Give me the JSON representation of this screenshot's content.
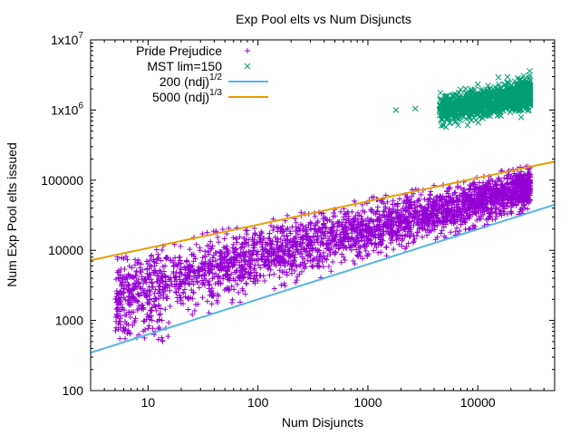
{
  "chart_data": {
    "type": "scatter",
    "title": "Exp Pool elts vs Num Disjuncts",
    "xlabel": "Num Disjuncts",
    "ylabel": "Num Exp Pool elts issued",
    "x_scale": "log",
    "y_scale": "log",
    "xlim": [
      3,
      50000
    ],
    "ylim": [
      100,
      10000000
    ],
    "x_ticks": [
      {
        "value": 10,
        "label": "10"
      },
      {
        "value": 100,
        "label": "100"
      },
      {
        "value": 1000,
        "label": "1000"
      },
      {
        "value": 10000,
        "label": "10000"
      }
    ],
    "y_ticks": [
      {
        "value": 100,
        "label": "100"
      },
      {
        "value": 1000,
        "label": "1000"
      },
      {
        "value": 10000,
        "label": "10000"
      },
      {
        "value": 100000,
        "label": "100000"
      },
      {
        "value": 1000000,
        "label": "1x10",
        "sup": "6"
      },
      {
        "value": 10000000,
        "label": "1x10",
        "sup": "7"
      }
    ],
    "grid": false,
    "legend_position": "top-left",
    "series": [
      {
        "name": "Pride Prejudice",
        "kind": "points",
        "marker": "plus",
        "color": "#9400d3",
        "x_range": [
          5,
          30000
        ],
        "y_range": [
          500,
          140000
        ],
        "trend": {
          "coefficient": 200,
          "exponent": 0.62
        },
        "sample": [
          [
            5,
            800
          ],
          [
            7,
            1000
          ],
          [
            10,
            2000
          ],
          [
            20,
            3000
          ],
          [
            50,
            6000
          ],
          [
            100,
            9000
          ],
          [
            300,
            15000
          ],
          [
            1000,
            20000
          ],
          [
            3000,
            40000
          ],
          [
            10000,
            60000
          ],
          [
            14000,
            140000
          ],
          [
            25000,
            90000
          ]
        ]
      },
      {
        "name": "MST lim=150",
        "kind": "points",
        "marker": "x",
        "color": "#009e73",
        "x_range": [
          1800,
          30000
        ],
        "y_range": [
          700000,
          3000000
        ],
        "sample": [
          [
            1800,
            1000000
          ],
          [
            2700,
            1050000
          ],
          [
            4500,
            1400000
          ],
          [
            7000,
            1000000
          ],
          [
            10000,
            1300000
          ],
          [
            15000,
            1600000
          ],
          [
            20000,
            1800000
          ],
          [
            28000,
            2000000
          ]
        ]
      },
      {
        "name": "200 (ndj)",
        "name_sup": "1/2",
        "kind": "line",
        "color": "#56b4e9",
        "function": {
          "coefficient": 200,
          "exponent": 0.5
        }
      },
      {
        "name": "5000 (ndj)",
        "name_sup": "1/3",
        "kind": "line",
        "color": "#e69f00",
        "function": {
          "coefficient": 5000,
          "exponent": 0.3333
        }
      }
    ]
  }
}
